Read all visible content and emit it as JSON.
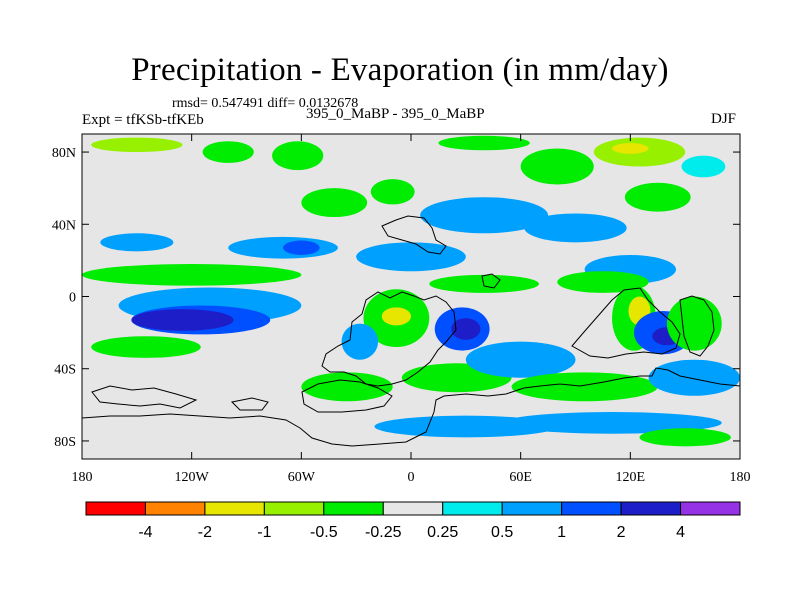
{
  "chart_data": {
    "type": "heatmap",
    "title": "Precipitation - Evaporation (in mm/day)",
    "stats": "rmsd= 0.547491  diff= 0.0132678",
    "left_label": "Expt = tfKSb-tfKEb",
    "center_label": "395_0_MaBP - 395_0_MaBP",
    "right_label": "DJF",
    "x_range": [
      -180,
      180
    ],
    "y_range": [
      -90,
      90
    ],
    "x_ticks": [
      {
        "value": -180,
        "label": "180"
      },
      {
        "value": -120,
        "label": "120W"
      },
      {
        "value": -60,
        "label": "60W"
      },
      {
        "value": 0,
        "label": "0"
      },
      {
        "value": 60,
        "label": "60E"
      },
      {
        "value": 120,
        "label": "120E"
      },
      {
        "value": 180,
        "label": "180"
      }
    ],
    "y_ticks": [
      {
        "value": 80,
        "label": "80N"
      },
      {
        "value": 40,
        "label": "40N"
      },
      {
        "value": 0,
        "label": "0"
      },
      {
        "value": -40,
        "label": "40S"
      },
      {
        "value": -80,
        "label": "80S"
      }
    ],
    "colorbar": {
      "levels": [
        "-4",
        "-2",
        "-1",
        "-0.5",
        "-0.25",
        "0.25",
        "0.5",
        "1",
        "2",
        "4"
      ],
      "colors": [
        "#ff0000",
        "#ff8200",
        "#e6e600",
        "#96f000",
        "#00ec00",
        "#e6e6e6",
        "#00ebeb",
        "#00a0ff",
        "#0050ff",
        "#1e1ec8",
        "#9632e6"
      ]
    },
    "anomaly_regions": [
      {
        "lon": -150,
        "lat": 84,
        "rlon": 25,
        "rlat": 4,
        "level": -1
      },
      {
        "lon": -100,
        "lat": 80,
        "rlon": 14,
        "rlat": 6,
        "level": -0.5
      },
      {
        "lon": -62,
        "lat": 78,
        "rlon": 14,
        "rlat": 8,
        "level": -0.5
      },
      {
        "lon": 40,
        "lat": 85,
        "rlon": 25,
        "rlat": 4,
        "level": -0.5
      },
      {
        "lon": 80,
        "lat": 72,
        "rlon": 20,
        "rlat": 10,
        "level": -0.5
      },
      {
        "lon": 125,
        "lat": 80,
        "rlon": 25,
        "rlat": 8,
        "level": -1
      },
      {
        "lon": 120,
        "lat": 82,
        "rlon": 10,
        "rlat": 3,
        "level": -2
      },
      {
        "lon": 160,
        "lat": 72,
        "rlon": 12,
        "rlat": 6,
        "level": 0.25
      },
      {
        "lon": 135,
        "lat": 55,
        "rlon": 18,
        "rlat": 8,
        "level": -0.5
      },
      {
        "lon": -42,
        "lat": 52,
        "rlon": 18,
        "rlat": 8,
        "level": -0.5
      },
      {
        "lon": -10,
        "lat": 58,
        "rlon": 12,
        "rlat": 7,
        "level": -0.5
      },
      {
        "lon": 40,
        "lat": 45,
        "rlon": 35,
        "rlat": 10,
        "level": 0.5
      },
      {
        "lon": 90,
        "lat": 38,
        "rlon": 28,
        "rlat": 8,
        "level": 0.5
      },
      {
        "lon": -150,
        "lat": 30,
        "rlon": 20,
        "rlat": 5,
        "level": 0.5
      },
      {
        "lon": -70,
        "lat": 27,
        "rlon": 30,
        "rlat": 6,
        "level": 0.5
      },
      {
        "lon": -60,
        "lat": 27,
        "rlon": 10,
        "rlat": 4,
        "level": 1
      },
      {
        "lon": 0,
        "lat": 22,
        "rlon": 30,
        "rlat": 8,
        "level": 0.5
      },
      {
        "lon": 120,
        "lat": 15,
        "rlon": 25,
        "rlat": 8,
        "level": 0.5
      },
      {
        "lon": -120,
        "lat": 12,
        "rlon": 60,
        "rlat": 6,
        "level": -0.5
      },
      {
        "lon": 40,
        "lat": 7,
        "rlon": 30,
        "rlat": 5,
        "level": -0.5
      },
      {
        "lon": 105,
        "lat": 8,
        "rlon": 25,
        "rlat": 6,
        "level": -0.5
      },
      {
        "lon": -110,
        "lat": -5,
        "rlon": 50,
        "rlat": 10,
        "level": 0.5
      },
      {
        "lon": -115,
        "lat": -13,
        "rlon": 38,
        "rlat": 8,
        "level": 1
      },
      {
        "lon": -125,
        "lat": -13,
        "rlon": 28,
        "rlat": 6,
        "level": 2
      },
      {
        "lon": -145,
        "lat": -28,
        "rlon": 30,
        "rlat": 6,
        "level": -0.5
      },
      {
        "lon": -8,
        "lat": -12,
        "rlon": 18,
        "rlat": 16,
        "level": -0.5
      },
      {
        "lon": -8,
        "lat": -11,
        "rlon": 8,
        "rlat": 5,
        "level": -2
      },
      {
        "lon": -28,
        "lat": -25,
        "rlon": 10,
        "rlat": 10,
        "level": 0.5
      },
      {
        "lon": 28,
        "lat": -18,
        "rlon": 15,
        "rlat": 12,
        "level": 1
      },
      {
        "lon": 30,
        "lat": -18,
        "rlon": 8,
        "rlat": 6,
        "level": 2
      },
      {
        "lon": 25,
        "lat": -45,
        "rlon": 30,
        "rlat": 8,
        "level": -0.5
      },
      {
        "lon": 60,
        "lat": -35,
        "rlon": 30,
        "rlat": 10,
        "level": 0.5
      },
      {
        "lon": 122,
        "lat": -12,
        "rlon": 12,
        "rlat": 18,
        "level": -0.5
      },
      {
        "lon": 125,
        "lat": -8,
        "rlon": 6,
        "rlat": 8,
        "level": -2
      },
      {
        "lon": 138,
        "lat": -20,
        "rlon": 16,
        "rlat": 12,
        "level": 1
      },
      {
        "lon": 140,
        "lat": -22,
        "rlon": 8,
        "rlat": 5,
        "level": 2
      },
      {
        "lon": 155,
        "lat": -15,
        "rlon": 15,
        "rlat": 15,
        "level": -0.5
      },
      {
        "lon": 95,
        "lat": -50,
        "rlon": 40,
        "rlat": 8,
        "level": -0.5
      },
      {
        "lon": 155,
        "lat": -45,
        "rlon": 25,
        "rlat": 10,
        "level": 0.5
      },
      {
        "lon": -35,
        "lat": -50,
        "rlon": 25,
        "rlat": 8,
        "level": -0.5
      },
      {
        "lon": 30,
        "lat": -72,
        "rlon": 50,
        "rlat": 6,
        "level": 0.5
      },
      {
        "lon": 110,
        "lat": -70,
        "rlon": 60,
        "rlat": 6,
        "level": 0.5
      },
      {
        "lon": 150,
        "lat": -78,
        "rlon": 25,
        "rlat": 5,
        "level": -0.5
      }
    ]
  }
}
